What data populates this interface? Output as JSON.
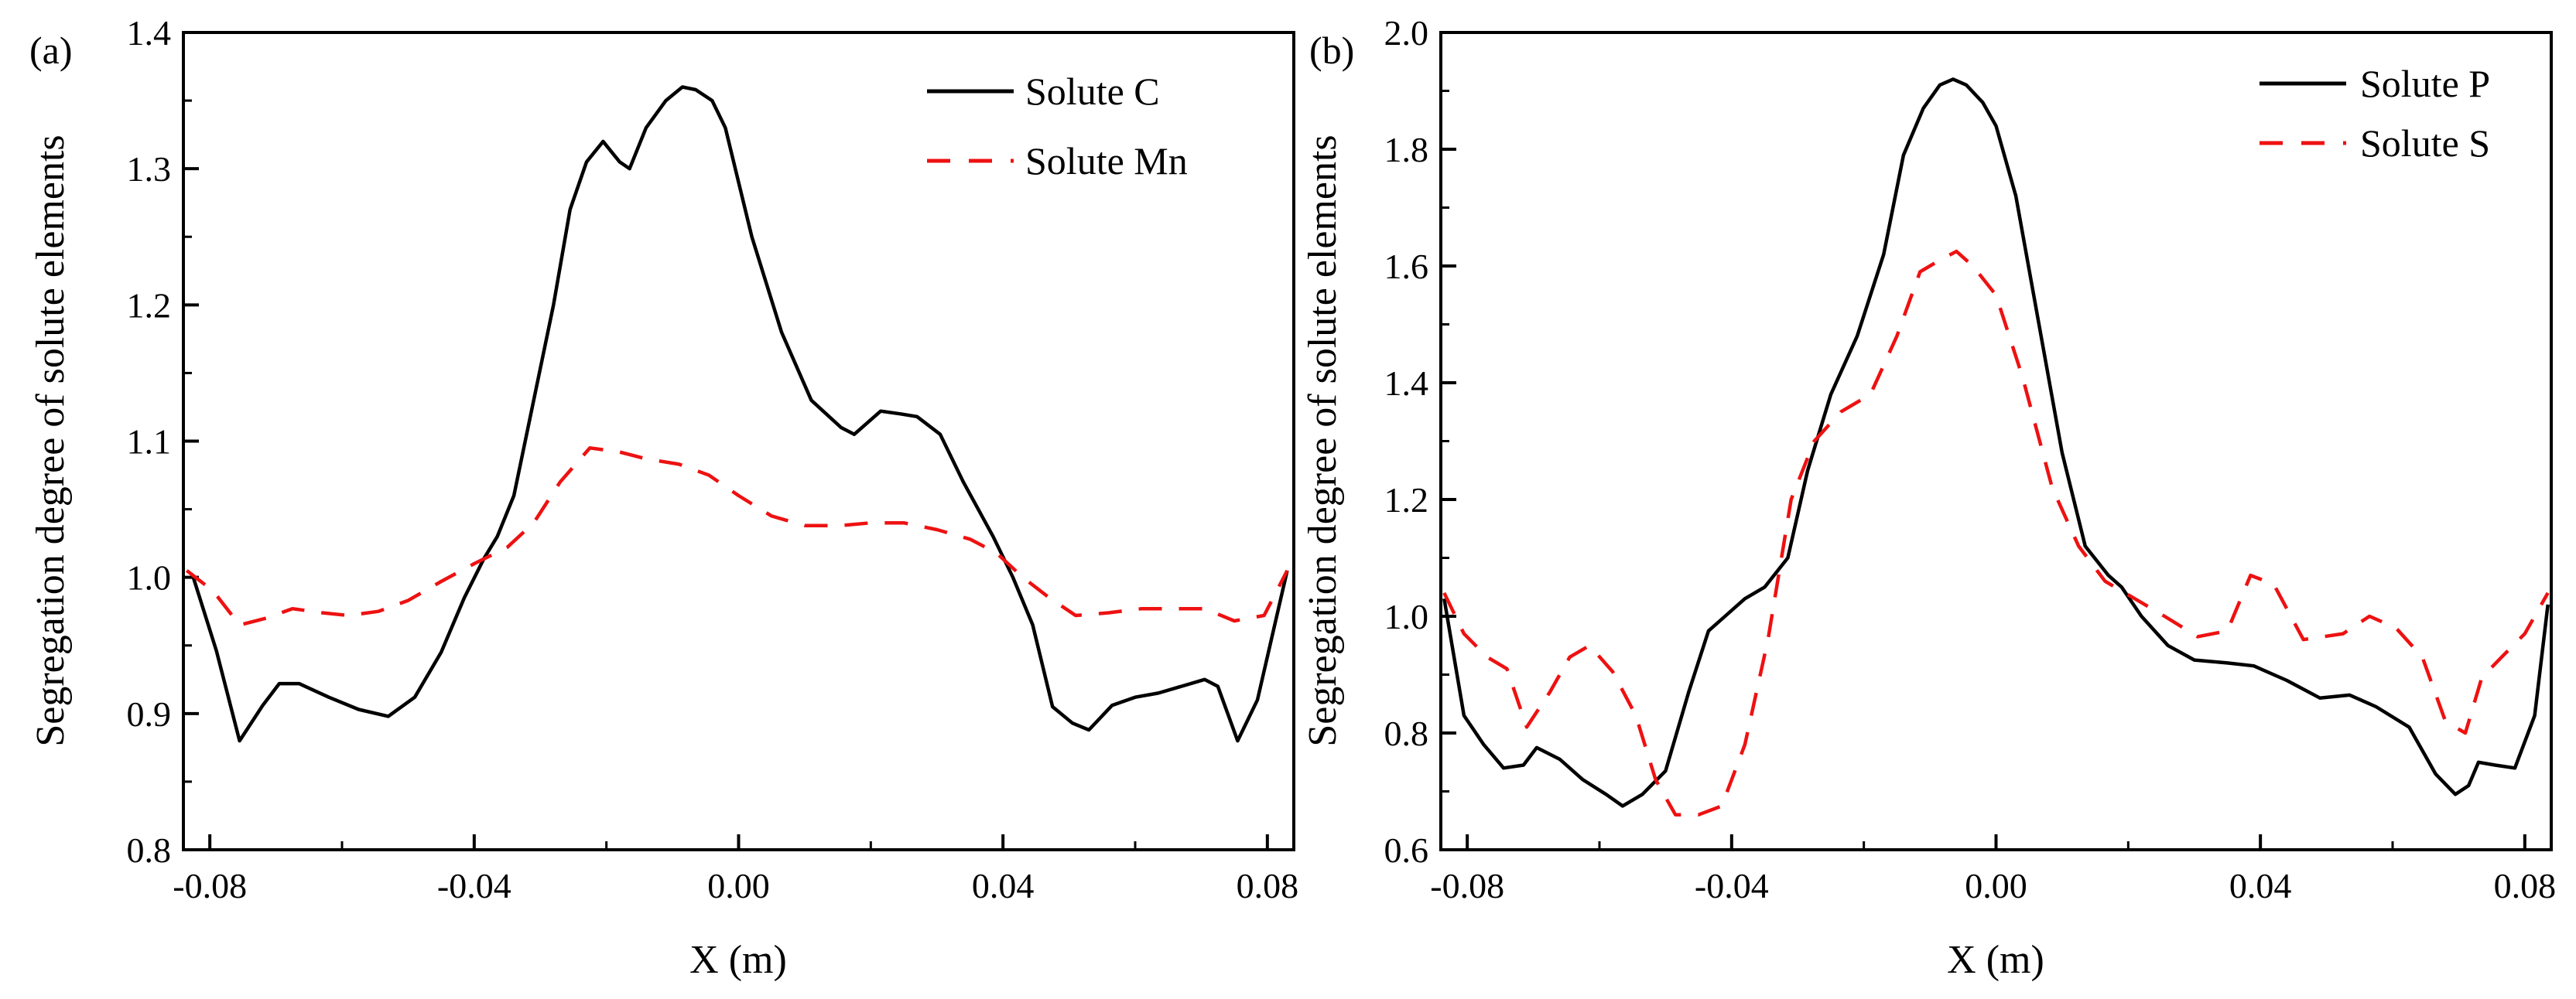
{
  "chart_data": [
    {
      "type": "line",
      "panel_label": "(a)",
      "xlabel": "X (m)",
      "ylabel": "Segregation degree of solute elements",
      "xlim": [
        -0.084,
        0.084
      ],
      "ylim": [
        0.8,
        1.4
      ],
      "xticks": [
        -0.08,
        -0.04,
        0.0,
        0.04,
        0.08
      ],
      "xtick_labels": [
        "-0.08",
        "-0.04",
        "0.00",
        "0.04",
        "0.08"
      ],
      "yticks": [
        0.8,
        0.9,
        1.0,
        1.1,
        1.2,
        1.3,
        1.4
      ],
      "ytick_labels": [
        "0.8",
        "0.9",
        "1.0",
        "1.1",
        "1.2",
        "1.3",
        "1.4"
      ],
      "grid": false,
      "legend_position": "top-right",
      "series": [
        {
          "name": "Solute C",
          "color": "#000000",
          "dash": "solid",
          "x": [
            -0.0825,
            -0.079,
            -0.0755,
            -0.072,
            -0.0695,
            -0.0665,
            -0.062,
            -0.0575,
            -0.053,
            -0.049,
            -0.045,
            -0.0415,
            -0.0385,
            -0.0365,
            -0.034,
            -0.031,
            -0.028,
            -0.0255,
            -0.023,
            -0.0205,
            -0.018,
            -0.0165,
            -0.014,
            -0.011,
            -0.0085,
            -0.0065,
            -0.004,
            -0.002,
            0.002,
            0.0065,
            0.011,
            0.0155,
            0.0175,
            0.0215,
            0.0245,
            0.027,
            0.0305,
            0.034,
            0.0385,
            0.0415,
            0.0445,
            0.0475,
            0.0505,
            0.053,
            0.0565,
            0.06,
            0.0635,
            0.067,
            0.0705,
            0.0725,
            0.0755,
            0.0785,
            0.083
          ],
          "y": [
            1.0,
            0.946,
            0.88,
            0.906,
            0.922,
            0.922,
            0.912,
            0.903,
            0.898,
            0.912,
            0.945,
            0.985,
            1.014,
            1.03,
            1.06,
            1.13,
            1.2,
            1.27,
            1.305,
            1.32,
            1.305,
            1.3,
            1.33,
            1.35,
            1.36,
            1.358,
            1.35,
            1.33,
            1.25,
            1.18,
            1.13,
            1.11,
            1.105,
            1.122,
            1.12,
            1.118,
            1.105,
            1.07,
            1.03,
            1.0,
            0.965,
            0.905,
            0.893,
            0.888,
            0.906,
            0.912,
            0.915,
            0.92,
            0.925,
            0.92,
            0.88,
            0.91,
            1.005
          ]
        },
        {
          "name": "Solute Mn",
          "color": "#ee1111",
          "dash": "dashed",
          "x": [
            -0.0835,
            -0.0795,
            -0.0755,
            -0.0715,
            -0.0675,
            -0.063,
            -0.059,
            -0.0545,
            -0.05,
            -0.045,
            -0.04,
            -0.035,
            -0.031,
            -0.027,
            -0.0225,
            -0.018,
            -0.014,
            -0.009,
            -0.0045,
            0.0,
            0.005,
            0.01,
            0.0155,
            0.02,
            0.025,
            0.03,
            0.035,
            0.039,
            0.043,
            0.047,
            0.051,
            0.056,
            0.061,
            0.066,
            0.0705,
            0.075,
            0.0795,
            0.083
          ],
          "y": [
            1.005,
            0.99,
            0.965,
            0.97,
            0.977,
            0.974,
            0.972,
            0.975,
            0.983,
            0.997,
            1.01,
            1.022,
            1.04,
            1.07,
            1.095,
            1.092,
            1.087,
            1.083,
            1.075,
            1.06,
            1.045,
            1.038,
            1.038,
            1.04,
            1.04,
            1.035,
            1.028,
            1.018,
            1.0,
            0.985,
            0.972,
            0.974,
            0.977,
            0.977,
            0.977,
            0.968,
            0.972,
            1.005
          ]
        }
      ]
    },
    {
      "type": "line",
      "panel_label": "(b)",
      "xlabel": "X (m)",
      "ylabel": "Segregation degree of solute elements",
      "xlim": [
        -0.084,
        0.084
      ],
      "ylim": [
        0.6,
        2.0
      ],
      "xticks": [
        -0.08,
        -0.04,
        0.0,
        0.04,
        0.08
      ],
      "xtick_labels": [
        "-0.08",
        "-0.04",
        "0.00",
        "0.04",
        "0.08"
      ],
      "yticks": [
        0.6,
        0.8,
        1.0,
        1.2,
        1.4,
        1.6,
        1.8,
        2.0
      ],
      "ytick_labels": [
        "0.6",
        "0.8",
        "1.0",
        "1.2",
        "1.4",
        "1.6",
        "1.8",
        "2.0"
      ],
      "grid": false,
      "legend_position": "top-right",
      "series": [
        {
          "name": "Solute P",
          "color": "#000000",
          "dash": "solid",
          "x": [
            -0.0835,
            -0.0805,
            -0.0775,
            -0.0745,
            -0.0715,
            -0.0695,
            -0.066,
            -0.0625,
            -0.059,
            -0.0565,
            -0.0535,
            -0.05,
            -0.0465,
            -0.0435,
            -0.041,
            -0.038,
            -0.035,
            -0.0315,
            -0.0285,
            -0.025,
            -0.021,
            -0.017,
            -0.014,
            -0.011,
            -0.0085,
            -0.0065,
            -0.0045,
            -0.002,
            0.0,
            0.003,
            0.0065,
            0.01,
            0.0135,
            0.017,
            0.019,
            0.022,
            0.026,
            0.03,
            0.035,
            0.039,
            0.044,
            0.049,
            0.0535,
            0.0575,
            0.0625,
            0.0665,
            0.0695,
            0.0715,
            0.073,
            0.0755,
            0.0785,
            0.0815,
            0.0835
          ],
          "y": [
            1.03,
            0.83,
            0.78,
            0.74,
            0.745,
            0.775,
            0.755,
            0.72,
            0.695,
            0.675,
            0.695,
            0.735,
            0.87,
            0.975,
            1.0,
            1.03,
            1.05,
            1.1,
            1.25,
            1.38,
            1.48,
            1.62,
            1.79,
            1.87,
            1.91,
            1.92,
            1.91,
            1.88,
            1.84,
            1.72,
            1.5,
            1.28,
            1.12,
            1.07,
            1.05,
            1.0,
            0.95,
            0.925,
            0.92,
            0.915,
            0.89,
            0.86,
            0.865,
            0.845,
            0.81,
            0.73,
            0.695,
            0.71,
            0.75,
            0.745,
            0.74,
            0.83,
            1.02
          ]
        },
        {
          "name": "Solute S",
          "color": "#ee1111",
          "dash": "dashed",
          "x": [
            -0.0835,
            -0.0805,
            -0.077,
            -0.074,
            -0.071,
            -0.0675,
            -0.0645,
            -0.0615,
            -0.058,
            -0.0545,
            -0.0515,
            -0.0485,
            -0.045,
            -0.0415,
            -0.038,
            -0.0345,
            -0.031,
            -0.0275,
            -0.0235,
            -0.019,
            -0.015,
            -0.0115,
            -0.0085,
            -0.006,
            -0.0035,
            0.0,
            0.004,
            0.0085,
            0.0125,
            0.0165,
            0.021,
            0.0255,
            0.0305,
            0.035,
            0.0385,
            0.042,
            0.0465,
            0.0525,
            0.0565,
            0.0605,
            0.0645,
            0.068,
            0.071,
            0.0735,
            0.0765,
            0.08,
            0.0835
          ],
          "y": [
            1.04,
            0.97,
            0.93,
            0.91,
            0.81,
            0.87,
            0.93,
            0.95,
            0.905,
            0.83,
            0.72,
            0.66,
            0.66,
            0.675,
            0.78,
            0.96,
            1.2,
            1.3,
            1.35,
            1.38,
            1.48,
            1.59,
            1.61,
            1.625,
            1.6,
            1.55,
            1.41,
            1.22,
            1.12,
            1.06,
            1.03,
            1.0,
            0.965,
            0.975,
            1.07,
            1.055,
            0.96,
            0.97,
            1.0,
            0.98,
            0.93,
            0.82,
            0.8,
            0.895,
            0.93,
            0.97,
            1.04
          ]
        }
      ]
    }
  ]
}
